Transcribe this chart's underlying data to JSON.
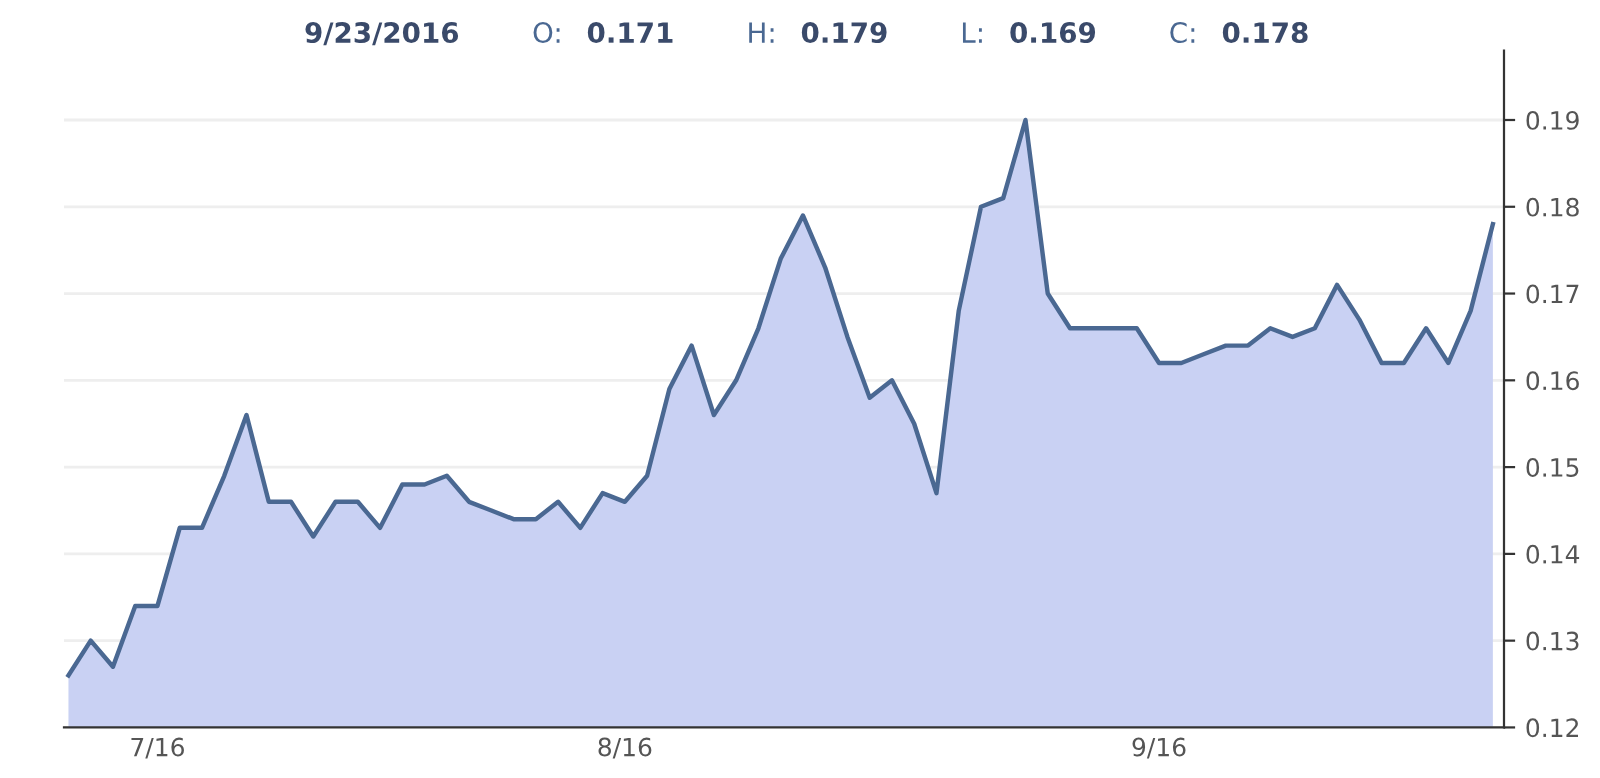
{
  "chart_data": {
    "type": "area",
    "annotations": [
      "9/23/2016",
      "O:",
      "0.171",
      "H:",
      "0.179",
      "L:",
      "0.169",
      "C:",
      "0.178"
    ],
    "categories": [
      null,
      null,
      null,
      null,
      "7/16",
      null,
      null,
      null,
      null,
      null,
      null,
      null,
      null,
      null,
      null,
      null,
      null,
      null,
      null,
      null,
      null,
      null,
      null,
      null,
      null,
      "8/16",
      null,
      null,
      null,
      null,
      null,
      null,
      null,
      null,
      null,
      null,
      null,
      null,
      null,
      null,
      null,
      null,
      null,
      null,
      null,
      null,
      null,
      null,
      null,
      "9/16",
      null,
      null,
      null,
      null,
      null,
      null,
      null,
      null,
      null,
      null,
      null,
      null,
      null,
      null,
      null
    ],
    "series": [
      {
        "color": "#4a6892",
        "values": [
          0.126,
          0.13,
          0.127,
          0.134,
          0.134,
          0.143,
          0.143,
          0.149,
          0.156,
          0.146,
          0.146,
          0.142,
          0.146,
          0.146,
          0.143,
          0.148,
          0.148,
          0.149,
          0.146,
          0.145,
          0.144,
          0.144,
          0.146,
          0.143,
          0.147,
          0.146,
          0.149,
          0.159,
          0.164,
          0.156,
          0.16,
          0.166,
          0.174,
          0.179,
          0.173,
          0.165,
          0.158,
          0.16,
          0.155,
          0.147,
          0.168,
          0.18,
          0.181,
          0.19,
          0.17,
          0.166,
          0.166,
          0.166,
          0.166,
          0.162,
          0.162,
          0.163,
          0.164,
          0.164,
          0.166,
          0.165,
          0.166,
          0.171,
          0.167,
          0.162,
          0.162,
          0.166,
          0.162,
          0.168,
          0.178
        ]
      }
    ],
    "ylim": [
      0.12,
      0.198
    ],
    "yticks": [
      0.12,
      0.13,
      0.14,
      0.15,
      0.16,
      0.17,
      0.18,
      0.19
    ],
    "grid": "y"
  }
}
